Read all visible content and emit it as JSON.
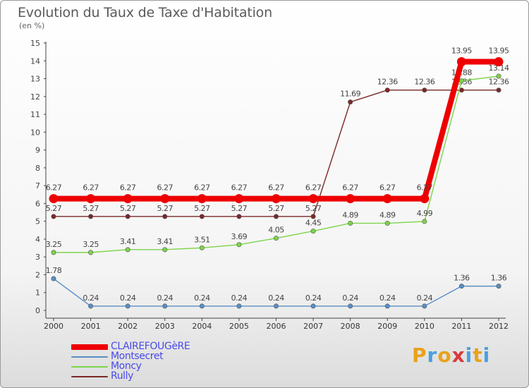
{
  "header": {
    "title": "Evolution du Taux de Taxe d'Habitation",
    "unit": "(en %)"
  },
  "logo": {
    "text": "Proxiti",
    "colors": [
      "#e8a21a",
      "#4aa0e0",
      "#e8a21a",
      "#d93a3a",
      "#4aa0e0",
      "#e8a21a",
      "#4aa0e0"
    ]
  },
  "chart_data": {
    "type": "line",
    "title": "Evolution du Taux de Taxe d'Habitation",
    "ylabel": "(en %)",
    "xlabel": "",
    "ylim": [
      0,
      15
    ],
    "yticks": [
      0,
      1,
      2,
      3,
      4,
      5,
      6,
      7,
      8,
      9,
      10,
      11,
      12,
      13,
      14,
      15
    ],
    "grid": false,
    "legend_position": "bottom-left",
    "categories": [
      "2000",
      "2001",
      "2002",
      "2003",
      "2004",
      "2005",
      "2006",
      "2007",
      "2008",
      "2009",
      "2010",
      "2011",
      "2012"
    ],
    "series": [
      {
        "name": "Rully",
        "color": "#7a2828",
        "values": [
          5.27,
          5.27,
          5.27,
          5.27,
          5.27,
          5.27,
          5.27,
          5.27,
          11.69,
          12.36,
          12.36,
          12.36,
          12.36
        ],
        "labels": [
          "5.27",
          "5.27",
          "5.27",
          "5.27",
          "5.27",
          "5.27",
          "5.27",
          "5.27",
          "11.69",
          "12.36",
          "12.36",
          "12.36",
          "12.36"
        ]
      },
      {
        "name": "Moncy",
        "color": "#7cd44a",
        "values": [
          3.25,
          3.25,
          3.41,
          3.41,
          3.51,
          3.69,
          4.05,
          4.45,
          4.89,
          4.89,
          4.99,
          12.88,
          13.14
        ],
        "labels": [
          "3.25",
          "3.25",
          "3.41",
          "3.41",
          "3.51",
          "3.69",
          "4.05",
          "4.45",
          "4.89",
          "4.89",
          "4.99",
          "12.88",
          "13.14"
        ]
      },
      {
        "name": "Montsecret",
        "color": "#5a8ec4",
        "values": [
          1.78,
          0.24,
          0.24,
          0.24,
          0.24,
          0.24,
          0.24,
          0.24,
          0.24,
          0.24,
          0.24,
          1.36,
          1.36
        ],
        "labels": [
          "1.78",
          "0.24",
          "0.24",
          "0.24",
          "0.24",
          "0.24",
          "0.24",
          "0.24",
          "0.24",
          "0.24",
          "0.24",
          "1.36",
          "1.36"
        ]
      },
      {
        "name": "CLAIREFOUGèRE",
        "color": "#ee0000",
        "values": [
          6.27,
          6.27,
          6.27,
          6.27,
          6.27,
          6.27,
          6.27,
          6.27,
          6.27,
          6.27,
          6.27,
          13.95,
          13.95
        ],
        "labels": [
          "6.27",
          "6.27",
          "6.27",
          "6.27",
          "6.27",
          "6.27",
          "6.27",
          "6.27",
          "6.27",
          "6.27",
          "6.27",
          "13.95",
          "13.95"
        ]
      }
    ]
  },
  "legend": [
    {
      "name": "CLAIREFOUGèRE",
      "color": "#ee0000"
    },
    {
      "name": "Montsecret",
      "color": "#5a8ec4"
    },
    {
      "name": "Moncy",
      "color": "#7cd44a"
    },
    {
      "name": "Rully",
      "color": "#7a2828"
    }
  ]
}
